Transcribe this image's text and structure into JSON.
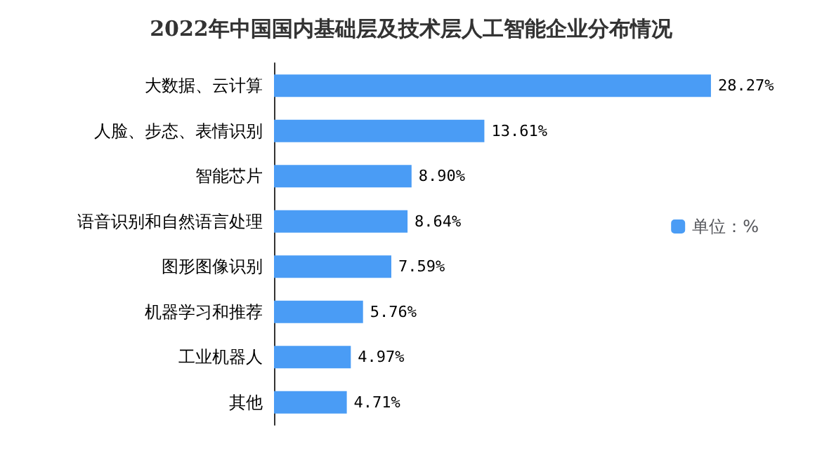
{
  "chart_data": {
    "type": "bar",
    "orientation": "horizontal",
    "title": "2022年中国国内基础层及技术层人工智能企业分布情况",
    "categories": [
      "大数据、云计算",
      "人脸、步态、表情识别",
      "智能芯片",
      "语音识别和自然语言处理",
      "图形图像识别",
      "机器学习和推荐",
      "工业机器人",
      "其他"
    ],
    "series": [
      {
        "name": "单位：%",
        "color": "#4a9cf5",
        "values": [
          28.27,
          13.61,
          8.9,
          8.64,
          7.59,
          5.76,
          4.97,
          4.71
        ],
        "value_labels": [
          "28.27%",
          "13.61%",
          "8.90%",
          "8.64%",
          "7.59%",
          "5.76%",
          "4.97%",
          "4.71%"
        ]
      }
    ],
    "legend": "right",
    "grid": false
  }
}
